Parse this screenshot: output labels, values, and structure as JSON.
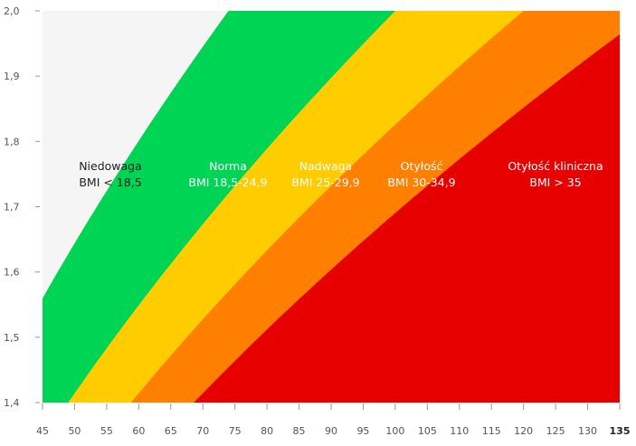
{
  "chart_data": {
    "type": "area",
    "title": "",
    "xlabel": "",
    "ylabel": "",
    "xlim": [
      45,
      135
    ],
    "ylim": [
      1.4,
      2.0
    ],
    "x_ticks": [
      "45",
      "50",
      "55",
      "60",
      "65",
      "70",
      "75",
      "80",
      "85",
      "90",
      "95",
      "100",
      "105",
      "110",
      "115",
      "120",
      "125",
      "130",
      "135"
    ],
    "y_ticks": [
      "1,4",
      "1,5",
      "1,6",
      "1,7",
      "1,8",
      "1,9",
      "2,0"
    ],
    "bmi_thresholds": [
      18.5,
      25,
      30,
      35
    ],
    "grid": false,
    "zones": [
      {
        "line1": "Niedowaga",
        "line2": "BMI < 18,5",
        "color": "#f5f5f5",
        "text_color": "#222222",
        "bmi_min": 0,
        "bmi_max": 18.5
      },
      {
        "line1": "Norma",
        "line2": "BMI 18,5-24,9",
        "color": "#00d455",
        "text_color": "#ffffff",
        "bmi_min": 18.5,
        "bmi_max": 25
      },
      {
        "line1": "Nadwaga",
        "line2": "BMI 25-29,9",
        "color": "#ffcc00",
        "text_color": "#ffffff",
        "bmi_min": 25,
        "bmi_max": 30
      },
      {
        "line1": "Otyłość",
        "line2": "BMI 30-34,9",
        "color": "#ff7f00",
        "text_color": "#ffffff",
        "bmi_min": 30,
        "bmi_max": 35
      },
      {
        "line1": "Otyłość kliniczna",
        "line2": "BMI > 35",
        "color": "#e60000",
        "text_color": "#ffffff",
        "bmi_min": 35,
        "bmi_max": 999
      }
    ]
  }
}
